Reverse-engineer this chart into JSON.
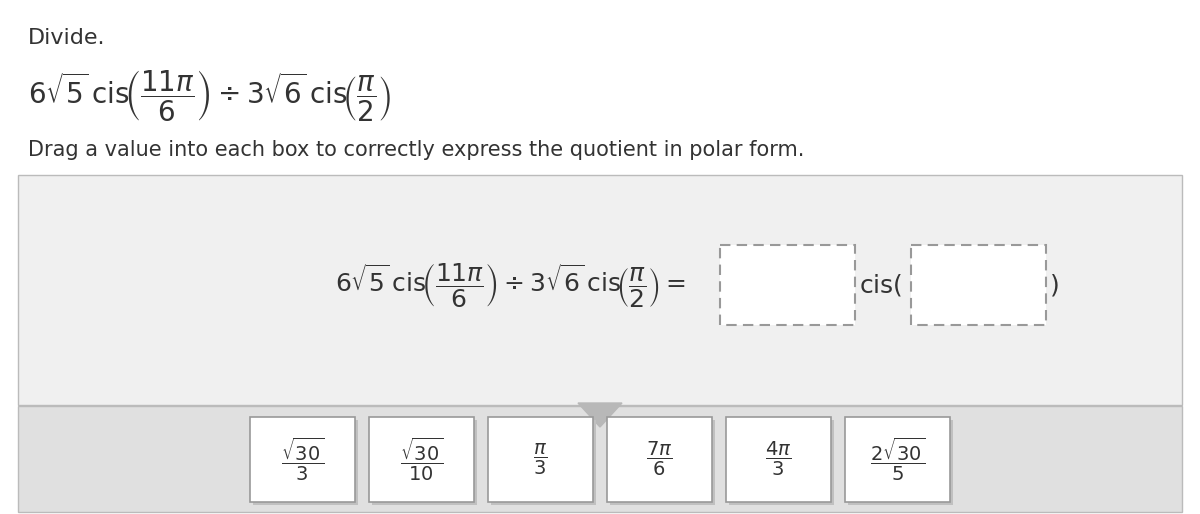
{
  "title": "Divide.",
  "instruction": "Drag a value into each box to correctly express the quotient in polar form.",
  "answer_tiles": [
    "\\dfrac{\\sqrt{30}}{3}",
    "\\dfrac{\\sqrt{30}}{10}",
    "\\dfrac{\\pi}{3}",
    "\\dfrac{7\\pi}{6}",
    "\\dfrac{4\\pi}{3}",
    "\\dfrac{2\\sqrt{30}}{5}"
  ],
  "bg_light": "#f0f0f0",
  "bg_dark": "#e0e0e0",
  "white": "#ffffff",
  "text_color": "#333333",
  "border_color": "#bbbbbb",
  "dashed_color": "#999999",
  "tile_border": "#999999",
  "title_fontsize": 16,
  "problem_fontsize": 20,
  "instruction_fontsize": 15,
  "eq_fontsize": 18,
  "tile_fontsize": 14
}
